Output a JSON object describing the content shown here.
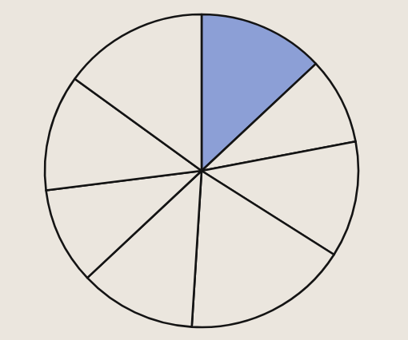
{
  "chart_data": {
    "type": "pie",
    "values": [
      13,
      9,
      12,
      17,
      12,
      10,
      12,
      15
    ],
    "colors": [
      "#8c9fd6",
      "#ebe6de",
      "#ebe6de",
      "#ebe6de",
      "#ebe6de",
      "#ebe6de",
      "#ebe6de",
      "#ebe6de"
    ]
  }
}
